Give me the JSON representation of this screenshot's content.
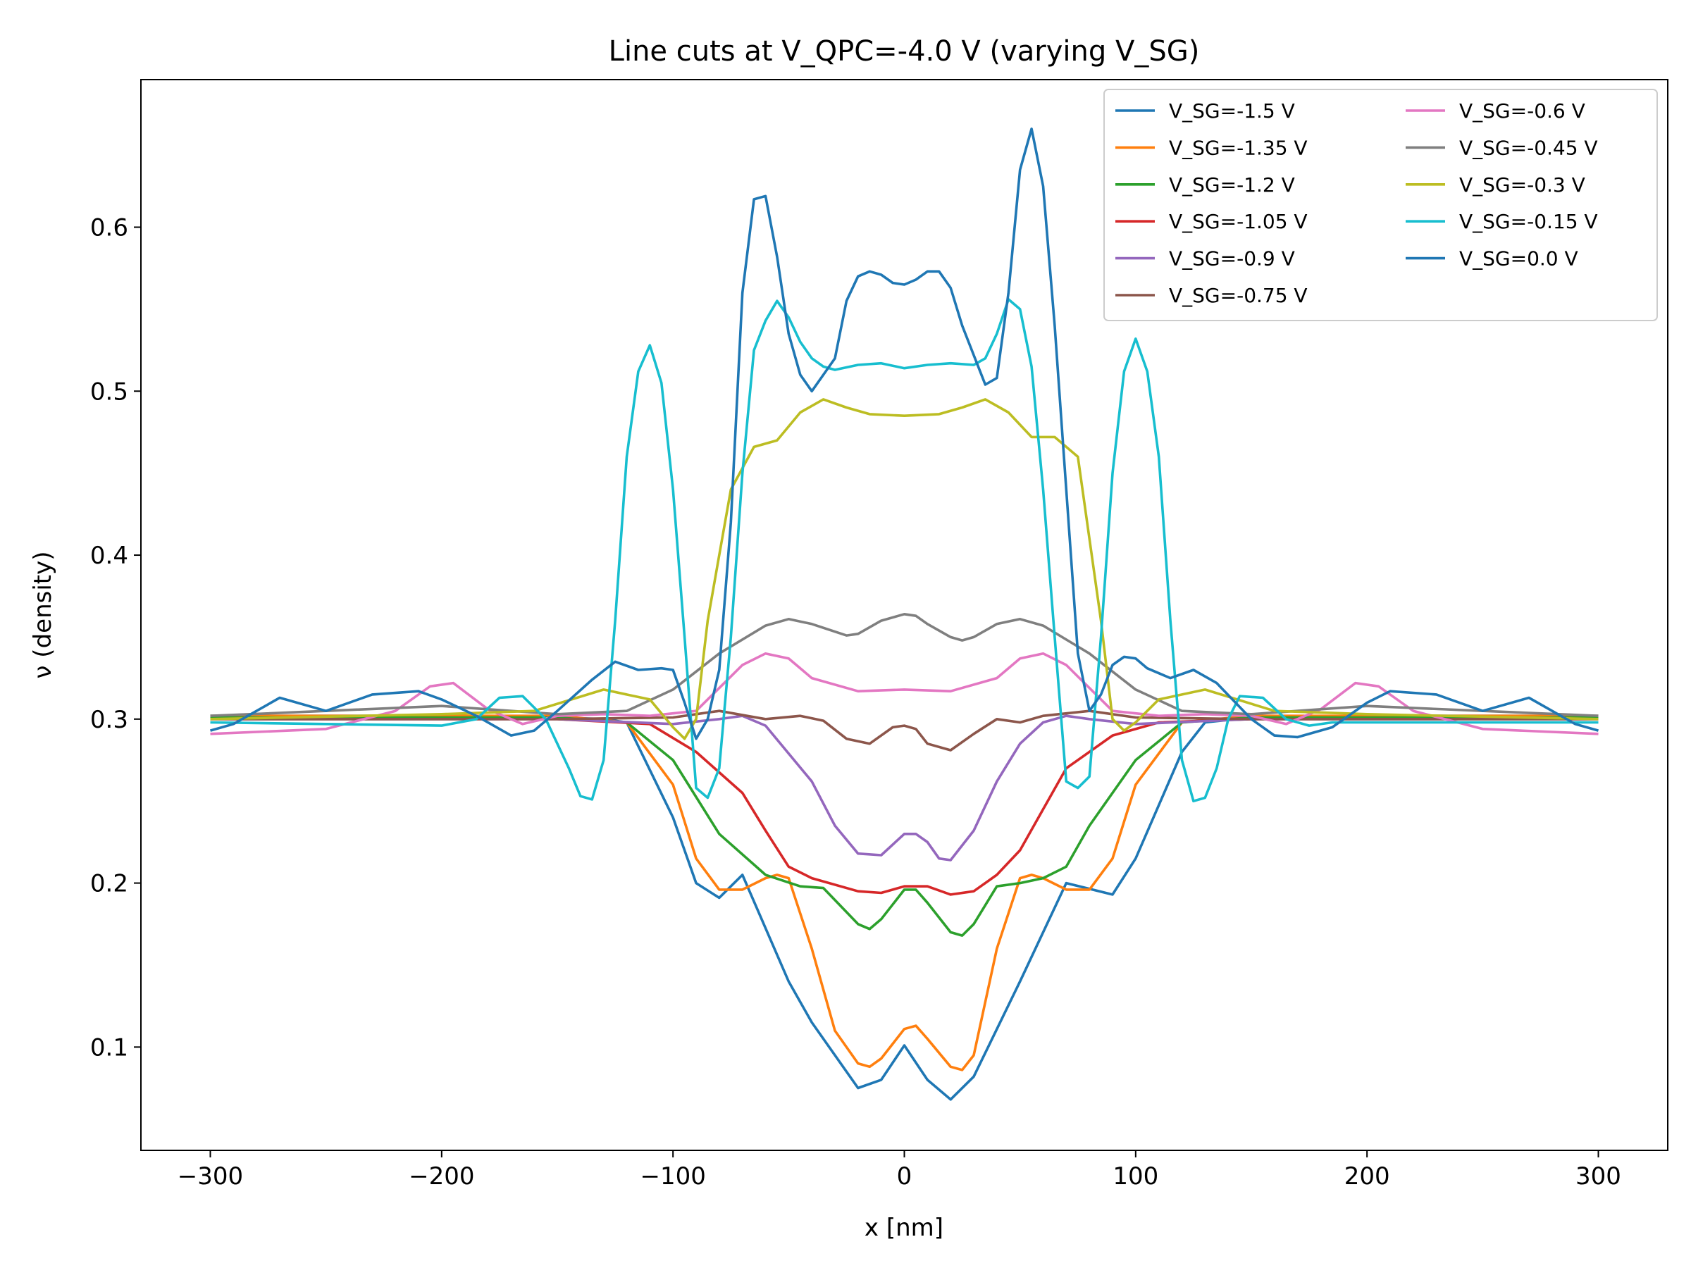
{
  "chart_data": {
    "type": "line",
    "title": "Line cuts at V_QPC=-4.0 V (varying V_SG)",
    "xlabel": "x [nm]",
    "ylabel": "ν (density)",
    "xlim": [
      -330,
      330
    ],
    "ylim": [
      0.037,
      0.69
    ],
    "xticks": [
      -300,
      -200,
      -100,
      0,
      100,
      200,
      300
    ],
    "xtick_labels": [
      "−300",
      "−200",
      "−100",
      "0",
      "100",
      "200",
      "300"
    ],
    "yticks": [
      0.1,
      0.2,
      0.3,
      0.4,
      0.5,
      0.6
    ],
    "ytick_labels": [
      "0.1",
      "0.2",
      "0.3",
      "0.4",
      "0.5",
      "0.6"
    ],
    "grid": false,
    "legend_position": "top-right",
    "legend_columns": 2,
    "series": [
      {
        "name": "V_SG=-1.5 V",
        "color": "#1f77b4",
        "x": [
          -300,
          -200,
          -150,
          -130,
          -120,
          -100,
          -90,
          -80,
          -70,
          -50,
          -40,
          -20,
          -10,
          0,
          10,
          20,
          30,
          50,
          70,
          90,
          100,
          120,
          130,
          150,
          200,
          300
        ],
        "y": [
          0.302,
          0.302,
          0.301,
          0.3,
          0.298,
          0.24,
          0.2,
          0.191,
          0.205,
          0.14,
          0.115,
          0.075,
          0.08,
          0.101,
          0.08,
          0.068,
          0.082,
          0.14,
          0.2,
          0.193,
          0.215,
          0.28,
          0.298,
          0.301,
          0.302,
          0.302
        ]
      },
      {
        "name": "V_SG=-1.35 V",
        "color": "#ff7f0e",
        "x": [
          -300,
          -150,
          -120,
          -100,
          -90,
          -80,
          -70,
          -60,
          -55,
          -50,
          -40,
          -30,
          -20,
          -15,
          -10,
          0,
          5,
          10,
          20,
          25,
          30,
          40,
          50,
          55,
          60,
          70,
          80,
          90,
          100,
          120,
          150,
          300
        ],
        "y": [
          0.302,
          0.302,
          0.298,
          0.26,
          0.215,
          0.196,
          0.196,
          0.203,
          0.205,
          0.203,
          0.16,
          0.11,
          0.09,
          0.088,
          0.093,
          0.111,
          0.113,
          0.105,
          0.088,
          0.086,
          0.095,
          0.16,
          0.203,
          0.205,
          0.203,
          0.196,
          0.196,
          0.215,
          0.26,
          0.298,
          0.302,
          0.302
        ]
      },
      {
        "name": "V_SG=-1.2 V",
        "color": "#2ca02c",
        "x": [
          -300,
          -150,
          -120,
          -100,
          -80,
          -60,
          -45,
          -35,
          -20,
          -15,
          -10,
          0,
          5,
          10,
          20,
          25,
          30,
          40,
          50,
          60,
          70,
          80,
          100,
          120,
          150,
          300
        ],
        "y": [
          0.301,
          0.301,
          0.298,
          0.275,
          0.23,
          0.205,
          0.198,
          0.197,
          0.175,
          0.172,
          0.178,
          0.196,
          0.196,
          0.188,
          0.17,
          0.168,
          0.175,
          0.198,
          0.2,
          0.203,
          0.21,
          0.235,
          0.275,
          0.298,
          0.301,
          0.301
        ]
      },
      {
        "name": "V_SG=-1.05 V",
        "color": "#d62728",
        "x": [
          -300,
          -150,
          -110,
          -90,
          -70,
          -60,
          -50,
          -40,
          -20,
          -10,
          0,
          10,
          20,
          30,
          40,
          50,
          60,
          70,
          90,
          110,
          150,
          300
        ],
        "y": [
          0.3,
          0.3,
          0.297,
          0.28,
          0.255,
          0.232,
          0.21,
          0.203,
          0.195,
          0.194,
          0.198,
          0.198,
          0.193,
          0.195,
          0.205,
          0.22,
          0.245,
          0.27,
          0.29,
          0.298,
          0.3,
          0.3
        ]
      },
      {
        "name": "V_SG=-0.9 V",
        "color": "#9467bd",
        "x": [
          -300,
          -150,
          -100,
          -80,
          -70,
          -60,
          -40,
          -30,
          -20,
          -10,
          0,
          5,
          10,
          15,
          20,
          30,
          40,
          50,
          60,
          70,
          80,
          100,
          150,
          300
        ],
        "y": [
          0.3,
          0.3,
          0.297,
          0.3,
          0.302,
          0.296,
          0.262,
          0.235,
          0.218,
          0.217,
          0.23,
          0.23,
          0.225,
          0.215,
          0.214,
          0.232,
          0.262,
          0.285,
          0.298,
          0.302,
          0.3,
          0.297,
          0.3,
          0.3
        ]
      },
      {
        "name": "V_SG=-0.75 V",
        "color": "#8c564b",
        "x": [
          -300,
          -150,
          -100,
          -80,
          -60,
          -45,
          -35,
          -25,
          -15,
          -5,
          0,
          5,
          10,
          20,
          30,
          40,
          50,
          60,
          80,
          100,
          150,
          300
        ],
        "y": [
          0.3,
          0.3,
          0.301,
          0.305,
          0.3,
          0.302,
          0.299,
          0.288,
          0.285,
          0.295,
          0.296,
          0.294,
          0.285,
          0.281,
          0.291,
          0.3,
          0.298,
          0.302,
          0.305,
          0.301,
          0.3,
          0.3
        ]
      },
      {
        "name": "V_SG=-0.6 V",
        "color": "#e377c2",
        "x": [
          -300,
          -250,
          -220,
          -205,
          -195,
          -180,
          -165,
          -150,
          -130,
          -110,
          -90,
          -70,
          -60,
          -50,
          -40,
          -20,
          0,
          20,
          40,
          50,
          60,
          70,
          90,
          110,
          130,
          150,
          165,
          180,
          195,
          205,
          220,
          250,
          300
        ],
        "y": [
          0.291,
          0.294,
          0.305,
          0.32,
          0.322,
          0.306,
          0.297,
          0.302,
          0.303,
          0.302,
          0.305,
          0.333,
          0.34,
          0.337,
          0.325,
          0.317,
          0.318,
          0.317,
          0.325,
          0.337,
          0.34,
          0.333,
          0.305,
          0.302,
          0.303,
          0.302,
          0.297,
          0.306,
          0.322,
          0.32,
          0.305,
          0.294,
          0.291
        ]
      },
      {
        "name": "V_SG=-0.45 V",
        "color": "#7f7f7f",
        "x": [
          -300,
          -200,
          -150,
          -120,
          -100,
          -80,
          -60,
          -50,
          -40,
          -25,
          -20,
          -10,
          0,
          5,
          10,
          20,
          25,
          30,
          40,
          50,
          60,
          80,
          100,
          120,
          150,
          200,
          300
        ],
        "y": [
          0.302,
          0.308,
          0.303,
          0.305,
          0.318,
          0.34,
          0.357,
          0.361,
          0.358,
          0.351,
          0.352,
          0.36,
          0.364,
          0.363,
          0.358,
          0.35,
          0.348,
          0.35,
          0.358,
          0.361,
          0.357,
          0.34,
          0.318,
          0.305,
          0.303,
          0.308,
          0.302
        ]
      },
      {
        "name": "V_SG=-0.3 V",
        "color": "#bcbd22",
        "x": [
          -300,
          -200,
          -160,
          -130,
          -110,
          -100,
          -95,
          -90,
          -85,
          -80,
          -75,
          -65,
          -55,
          -45,
          -35,
          -25,
          -15,
          0,
          15,
          25,
          35,
          45,
          55,
          65,
          75,
          80,
          85,
          90,
          95,
          100,
          110,
          130,
          160,
          200,
          300
        ],
        "y": [
          0.3,
          0.303,
          0.305,
          0.318,
          0.312,
          0.295,
          0.288,
          0.3,
          0.36,
          0.4,
          0.44,
          0.466,
          0.47,
          0.487,
          0.495,
          0.49,
          0.486,
          0.485,
          0.486,
          0.49,
          0.495,
          0.487,
          0.472,
          0.472,
          0.46,
          0.41,
          0.36,
          0.3,
          0.293,
          0.298,
          0.312,
          0.318,
          0.305,
          0.303,
          0.3
        ]
      },
      {
        "name": "V_SG=-0.15 V",
        "color": "#17becf",
        "x": [
          -300,
          -200,
          -185,
          -175,
          -165,
          -155,
          -145,
          -140,
          -135,
          -130,
          -125,
          -120,
          -115,
          -110,
          -105,
          -100,
          -95,
          -90,
          -85,
          -80,
          -75,
          -70,
          -65,
          -60,
          -55,
          -50,
          -45,
          -40,
          -35,
          -30,
          -20,
          -10,
          0,
          10,
          20,
          30,
          35,
          40,
          45,
          50,
          55,
          60,
          65,
          70,
          75,
          80,
          85,
          90,
          95,
          100,
          105,
          110,
          115,
          120,
          125,
          130,
          135,
          140,
          145,
          155,
          165,
          175,
          185,
          200,
          300
        ],
        "y": [
          0.298,
          0.296,
          0.3,
          0.313,
          0.314,
          0.3,
          0.27,
          0.253,
          0.251,
          0.275,
          0.36,
          0.46,
          0.512,
          0.528,
          0.505,
          0.44,
          0.35,
          0.258,
          0.252,
          0.27,
          0.35,
          0.45,
          0.525,
          0.543,
          0.555,
          0.545,
          0.53,
          0.52,
          0.515,
          0.513,
          0.516,
          0.517,
          0.514,
          0.516,
          0.517,
          0.516,
          0.52,
          0.535,
          0.556,
          0.55,
          0.515,
          0.44,
          0.35,
          0.262,
          0.258,
          0.265,
          0.35,
          0.45,
          0.512,
          0.532,
          0.512,
          0.46,
          0.36,
          0.275,
          0.25,
          0.252,
          0.27,
          0.3,
          0.314,
          0.313,
          0.3,
          0.296,
          0.298,
          0.298,
          0.298
        ]
      },
      {
        "name": "V_SG=0.0 V",
        "color": "#1f77b4",
        "x": [
          -300,
          -290,
          -270,
          -250,
          -230,
          -210,
          -200,
          -185,
          -170,
          -160,
          -150,
          -135,
          -125,
          -115,
          -105,
          -100,
          -95,
          -90,
          -85,
          -80,
          -75,
          -70,
          -65,
          -60,
          -55,
          -50,
          -45,
          -40,
          -35,
          -30,
          -25,
          -20,
          -15,
          -10,
          -5,
          0,
          5,
          10,
          15,
          20,
          25,
          30,
          35,
          40,
          45,
          50,
          55,
          60,
          65,
          70,
          75,
          80,
          85,
          90,
          95,
          100,
          105,
          115,
          125,
          135,
          150,
          160,
          170,
          185,
          200,
          210,
          230,
          250,
          270,
          290,
          300
        ],
        "y": [
          0.293,
          0.297,
          0.313,
          0.305,
          0.315,
          0.317,
          0.312,
          0.302,
          0.29,
          0.293,
          0.305,
          0.324,
          0.335,
          0.33,
          0.331,
          0.33,
          0.31,
          0.288,
          0.3,
          0.33,
          0.42,
          0.56,
          0.617,
          0.619,
          0.582,
          0.535,
          0.51,
          0.5,
          0.51,
          0.52,
          0.555,
          0.57,
          0.573,
          0.571,
          0.566,
          0.565,
          0.568,
          0.573,
          0.573,
          0.563,
          0.54,
          0.522,
          0.504,
          0.508,
          0.56,
          0.635,
          0.66,
          0.625,
          0.54,
          0.44,
          0.34,
          0.305,
          0.315,
          0.333,
          0.338,
          0.337,
          0.331,
          0.325,
          0.33,
          0.322,
          0.3,
          0.29,
          0.289,
          0.295,
          0.31,
          0.317,
          0.315,
          0.305,
          0.313,
          0.297,
          0.293
        ]
      }
    ]
  }
}
